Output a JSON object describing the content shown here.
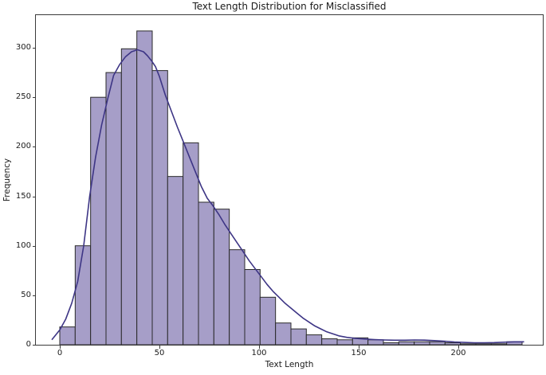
{
  "figure": {
    "kind": "matplotlib-figure"
  },
  "chart_data": {
    "type": "bar",
    "subtype": "histogram_with_kde",
    "title": "Text Length Distribution for Misclassified",
    "xlabel": "Text Length",
    "ylabel": "Frequency",
    "grid": false,
    "legend": null,
    "xlim": [
      -12,
      242.4
    ],
    "ylim": [
      0,
      333
    ],
    "x_ticks": [
      0,
      50,
      100,
      150,
      200
    ],
    "y_ticks": [
      0,
      50,
      100,
      150,
      200,
      250,
      300
    ],
    "bins": {
      "start": 0,
      "width": 7.7333,
      "count": 30,
      "end": 232
    },
    "values": [
      18,
      100,
      250,
      275,
      299,
      317,
      277,
      170,
      204,
      144,
      137,
      96,
      76,
      48,
      22,
      16,
      10,
      6,
      5,
      7,
      5,
      2,
      3,
      3,
      3,
      2,
      1,
      1,
      1,
      3
    ],
    "kde_points": [
      [
        -4,
        5
      ],
      [
        0,
        15
      ],
      [
        3,
        26
      ],
      [
        6,
        42
      ],
      [
        9,
        64
      ],
      [
        12,
        100
      ],
      [
        15,
        150
      ],
      [
        18,
        190
      ],
      [
        21,
        222
      ],
      [
        24,
        248
      ],
      [
        27,
        272
      ],
      [
        30,
        283
      ],
      [
        33,
        291
      ],
      [
        36,
        296
      ],
      [
        39,
        298
      ],
      [
        42,
        296
      ],
      [
        44,
        292
      ],
      [
        46,
        287
      ],
      [
        48,
        281
      ],
      [
        50,
        271
      ],
      [
        53,
        252
      ],
      [
        56,
        236
      ],
      [
        59,
        220
      ],
      [
        62,
        205
      ],
      [
        65,
        190
      ],
      [
        68,
        175
      ],
      [
        71,
        160
      ],
      [
        74,
        148
      ],
      [
        77,
        140
      ],
      [
        80,
        131
      ],
      [
        83,
        121
      ],
      [
        86,
        112
      ],
      [
        89,
        103
      ],
      [
        92,
        94
      ],
      [
        95,
        85
      ],
      [
        98,
        77
      ],
      [
        101,
        69
      ],
      [
        104,
        61
      ],
      [
        107,
        54
      ],
      [
        110,
        48
      ],
      [
        113,
        42
      ],
      [
        116,
        37
      ],
      [
        119,
        32
      ],
      [
        122,
        27
      ],
      [
        125,
        23
      ],
      [
        128,
        19
      ],
      [
        131,
        16
      ],
      [
        134,
        13
      ],
      [
        137,
        11
      ],
      [
        140,
        9
      ],
      [
        144,
        7.5
      ],
      [
        148,
        6.5
      ],
      [
        153,
        5.8
      ],
      [
        158,
        5.2
      ],
      [
        163,
        4.8
      ],
      [
        168,
        4.6
      ],
      [
        173,
        4.6
      ],
      [
        178,
        4.8
      ],
      [
        183,
        4.7
      ],
      [
        188,
        4.2
      ],
      [
        193,
        3.5
      ],
      [
        198,
        2.8
      ],
      [
        203,
        2.3
      ],
      [
        208,
        2
      ],
      [
        213,
        2
      ],
      [
        218,
        2.2
      ],
      [
        223,
        2.6
      ],
      [
        228,
        3
      ],
      [
        233,
        3
      ]
    ],
    "colors": {
      "bar_fill": "#a69ec8",
      "bar_edge": "#2b2b2b",
      "kde_line": "#3d3585",
      "spine": "#3a3a3a",
      "text": "#1a1a1a",
      "background": "#ffffff"
    }
  }
}
